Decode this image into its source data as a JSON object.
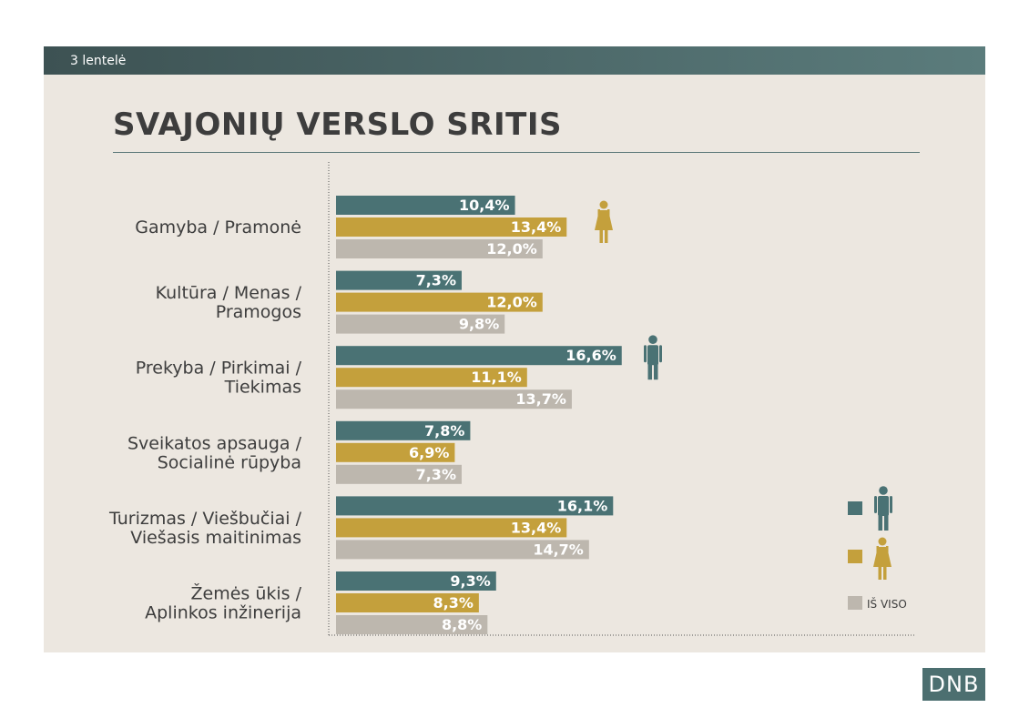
{
  "header": {
    "label": "3 lentelė"
  },
  "title": "SVAJONIŲ VERSLO SRITIS",
  "colors": {
    "male": "#4a7274",
    "female": "#c4a03c",
    "total": "#bdb7ae"
  },
  "legend": {
    "total_label": "IŠ VISO",
    "male_icon": "male-person-icon",
    "female_icon": "female-person-icon"
  },
  "chart_data": {
    "type": "bar",
    "orientation": "horizontal",
    "categories": [
      [
        "Gamyba / Pramonė"
      ],
      [
        "Kultūra / Menas /",
        "Pramogos"
      ],
      [
        "Prekyba / Pirkimai /",
        "Tiekimas"
      ],
      [
        "Sveikatos apsauga /",
        "Socialinė rūpyba"
      ],
      [
        "Turizmas / Viešbučiai /",
        "Viešasis maitinimas"
      ],
      [
        "Žemės ūkis /",
        "Aplinkos inžinerija"
      ]
    ],
    "series": [
      {
        "key": "male",
        "values": [
          10.4,
          7.3,
          16.6,
          7.8,
          16.1,
          9.3
        ],
        "labels": [
          "10,4%",
          "7,3%",
          "16,6%",
          "7,8%",
          "16,1%",
          "9,3%"
        ]
      },
      {
        "key": "female",
        "values": [
          13.4,
          12.0,
          11.1,
          6.9,
          13.4,
          8.3
        ],
        "labels": [
          "13,4%",
          "12,0%",
          "11,1%",
          "6,9%",
          "13,4%",
          "8,3%"
        ]
      },
      {
        "name": "IŠ VISO",
        "key": "total",
        "values": [
          12.0,
          9.8,
          13.7,
          7.3,
          14.7,
          8.8
        ],
        "labels": [
          "12,0%",
          "9,8%",
          "13,7%",
          "7,3%",
          "14,7%",
          "8,8%"
        ]
      }
    ],
    "highlights": [
      {
        "category_index": 0,
        "icon": "female-person-icon"
      },
      {
        "category_index": 2,
        "icon": "male-person-icon"
      }
    ],
    "xlim": [
      0,
      16.6
    ],
    "grid": false,
    "legend_position": "bottom-right"
  },
  "logo": {
    "text": "DNB"
  }
}
